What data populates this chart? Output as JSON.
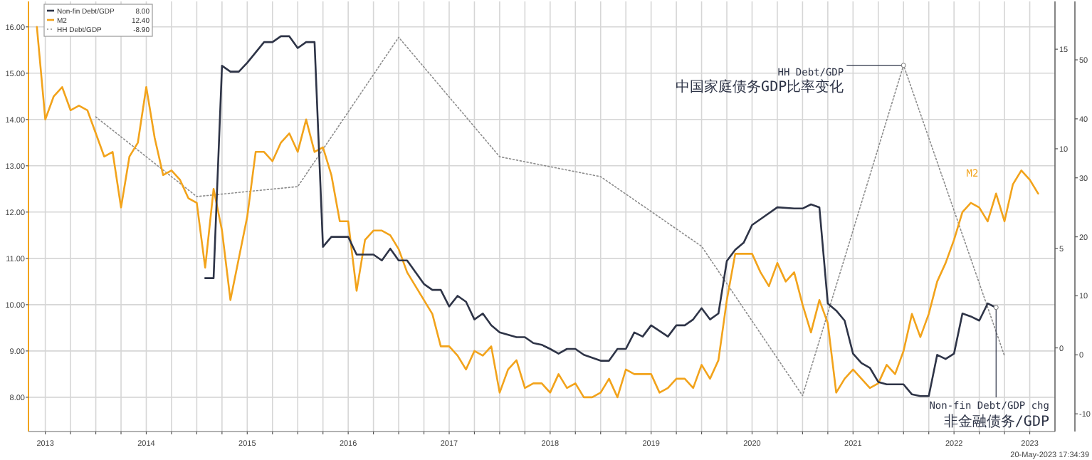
{
  "chart_data": {
    "type": "line",
    "xlim": [
      "2013-05",
      "2023-07"
    ],
    "xticks": [
      {
        "value": "2013-07",
        "label": "2013"
      },
      {
        "value": "2013-10",
        "label": null
      },
      {
        "value": "2014-01",
        "label": null
      },
      {
        "value": "2014-04",
        "label": null
      },
      {
        "value": "2014-07",
        "label": "2014"
      },
      {
        "value": "2014-10",
        "label": null
      },
      {
        "value": "2015-01",
        "label": null
      },
      {
        "value": "2015-04",
        "label": null
      },
      {
        "value": "2015-07",
        "label": "2015"
      },
      {
        "value": "2015-10",
        "label": null
      },
      {
        "value": "2016-01",
        "label": null
      },
      {
        "value": "2016-04",
        "label": null
      },
      {
        "value": "2016-07",
        "label": "2016"
      },
      {
        "value": "2016-10",
        "label": null
      },
      {
        "value": "2017-01",
        "label": null
      },
      {
        "value": "2017-04",
        "label": null
      },
      {
        "value": "2017-07",
        "label": "2017"
      },
      {
        "value": "2017-10",
        "label": null
      },
      {
        "value": "2018-01",
        "label": null
      },
      {
        "value": "2018-04",
        "label": null
      },
      {
        "value": "2018-07",
        "label": "2018"
      },
      {
        "value": "2018-10",
        "label": null
      },
      {
        "value": "2019-01",
        "label": null
      },
      {
        "value": "2019-04",
        "label": null
      },
      {
        "value": "2019-07",
        "label": "2019"
      },
      {
        "value": "2019-10",
        "label": null
      },
      {
        "value": "2020-01",
        "label": null
      },
      {
        "value": "2020-04",
        "label": null
      },
      {
        "value": "2020-07",
        "label": "2020"
      },
      {
        "value": "2020-10",
        "label": null
      },
      {
        "value": "2021-01",
        "label": null
      },
      {
        "value": "2021-04",
        "label": null
      },
      {
        "value": "2021-07",
        "label": "2021"
      },
      {
        "value": "2021-10",
        "label": null
      },
      {
        "value": "2022-01",
        "label": null
      },
      {
        "value": "2022-04",
        "label": null
      },
      {
        "value": "2022-07",
        "label": "2022"
      },
      {
        "value": "2022-10",
        "label": null
      },
      {
        "value": "2023-01",
        "label": null
      },
      {
        "value": "2023-04",
        "label": "2023"
      }
    ],
    "ylim": [
      7.26,
      16.55
    ],
    "yticks": [
      {
        "value": 8,
        "label": "8.00"
      },
      {
        "value": 9,
        "label": "9.00"
      },
      {
        "value": 10,
        "label": "10.00"
      },
      {
        "value": 11,
        "label": "11.00"
      },
      {
        "value": 12,
        "label": "12.00"
      },
      {
        "value": 13,
        "label": "13.00"
      },
      {
        "value": 14,
        "label": "14.00"
      },
      {
        "value": 15,
        "label": "15.00"
      },
      {
        "value": 16,
        "label": "16.00"
      }
    ],
    "y2lim": [
      -4.2,
      17.4
    ],
    "y2ticks": [
      0,
      5,
      10,
      15
    ],
    "y3lim": [
      -13,
      59.9
    ],
    "y3ticks": [
      -10,
      0,
      10,
      20,
      30,
      40,
      50
    ],
    "grid": true,
    "legend": "top left",
    "series": [
      {
        "name": "Non-fin Debt/GDP",
        "color": "#2e3447",
        "axis": "y3",
        "x": [
          "2015-02",
          "2015-03",
          "2015-04",
          "2015-05",
          "2015-06",
          "2015-07",
          "2015-09",
          "2015-10",
          "2015-11",
          "2015-12",
          "2016-01",
          "2016-02",
          "2016-03",
          "2016-04",
          "2016-05",
          "2016-07",
          "2016-08",
          "2016-10",
          "2016-11",
          "2016-12",
          "2017-01",
          "2017-02",
          "2017-04",
          "2017-05",
          "2017-06",
          "2017-07",
          "2017-08",
          "2017-09",
          "2017-10",
          "2017-11",
          "2017-12",
          "2018-01",
          "2018-03",
          "2018-04",
          "2018-05",
          "2018-06",
          "2018-07",
          "2018-08",
          "2018-09",
          "2018-10",
          "2018-11",
          "2019-01",
          "2019-02",
          "2019-03",
          "2019-04",
          "2019-05",
          "2019-06",
          "2019-07",
          "2019-09",
          "2019-10",
          "2019-11",
          "2019-12",
          "2020-01",
          "2020-02",
          "2020-03",
          "2020-04",
          "2020-05",
          "2020-06",
          "2020-07",
          "2020-08",
          "2020-10",
          "2020-12",
          "2021-01",
          "2021-02",
          "2021-03",
          "2021-04",
          "2021-05",
          "2021-06",
          "2021-07",
          "2021-08",
          "2021-09",
          "2021-10",
          "2021-11",
          "2022-01",
          "2022-02",
          "2022-03",
          "2022-04",
          "2022-05",
          "2022-06",
          "2022-07",
          "2022-08",
          "2022-09",
          "2022-10",
          "2022-11",
          "2022-12"
        ],
        "values": [
          13,
          13,
          49,
          48,
          48,
          49.5,
          53,
          53,
          54,
          54,
          52,
          53,
          53,
          18.3,
          20,
          20,
          17,
          17,
          16,
          18,
          16,
          16,
          12,
          11,
          11,
          8.2,
          10,
          9,
          6,
          7,
          5,
          3.8,
          3,
          3,
          2,
          1.7,
          1,
          0.2,
          1,
          1,
          0,
          -1,
          -1,
          1,
          1,
          3.8,
          3.1,
          5,
          3.1,
          5,
          5,
          6,
          7.9,
          6,
          7,
          15.9,
          17.8,
          19,
          22,
          23,
          25,
          24.8,
          24.8,
          25.5,
          25,
          8.7,
          7.5,
          5.8,
          0.2,
          -1.4,
          -2.2,
          -4.6,
          -5,
          -5,
          -6.7,
          -7,
          -7,
          0,
          -0.7,
          0.2,
          7,
          6.5,
          5.8,
          8.7,
          8
        ]
      },
      {
        "name": "M2",
        "color": "#f2a31b",
        "x": [
          "2013-06",
          "2013-07",
          "2013-08",
          "2013-09",
          "2013-10",
          "2013-11",
          "2013-12",
          "2014-01",
          "2014-02",
          "2014-03",
          "2014-04",
          "2014-05",
          "2014-06",
          "2014-07",
          "2014-08",
          "2014-09",
          "2014-10",
          "2014-11",
          "2014-12",
          "2015-01",
          "2015-02",
          "2015-03",
          "2015-04",
          "2015-05",
          "2015-06",
          "2015-07",
          "2015-08",
          "2015-09",
          "2015-10",
          "2015-11",
          "2015-12",
          "2016-01",
          "2016-02",
          "2016-03",
          "2016-04",
          "2016-05",
          "2016-06",
          "2016-07",
          "2016-08",
          "2016-09",
          "2016-10",
          "2016-11",
          "2016-12",
          "2017-01",
          "2017-02",
          "2017-03",
          "2017-04",
          "2017-05",
          "2017-06",
          "2017-07",
          "2017-08",
          "2017-09",
          "2017-10",
          "2017-11",
          "2017-12",
          "2018-01",
          "2018-02",
          "2018-03",
          "2018-04",
          "2018-05",
          "2018-06",
          "2018-07",
          "2018-08",
          "2018-09",
          "2018-10",
          "2018-11",
          "2018-12",
          "2019-01",
          "2019-02",
          "2019-03",
          "2019-04",
          "2019-05",
          "2019-06",
          "2019-07",
          "2019-08",
          "2019-09",
          "2019-10",
          "2019-11",
          "2019-12",
          "2020-01",
          "2020-02",
          "2020-03",
          "2020-04",
          "2020-05",
          "2020-06",
          "2020-07",
          "2020-08",
          "2020-09",
          "2020-10",
          "2020-11",
          "2020-12",
          "2021-01",
          "2021-02",
          "2021-03",
          "2021-04",
          "2021-05",
          "2021-06",
          "2021-07",
          "2021-08",
          "2021-09",
          "2021-10",
          "2021-11",
          "2021-12",
          "2022-01",
          "2022-02",
          "2022-03",
          "2022-04",
          "2022-05",
          "2022-06",
          "2022-07",
          "2022-08",
          "2022-09",
          "2022-10",
          "2022-11",
          "2022-12",
          "2023-01",
          "2023-02",
          "2023-03",
          "2023-04",
          "2023-05"
        ],
        "values": [
          16.0,
          14.0,
          14.5,
          14.7,
          14.2,
          14.3,
          14.2,
          13.7,
          13.2,
          13.3,
          12.1,
          13.2,
          13.5,
          14.7,
          13.6,
          12.8,
          12.9,
          12.7,
          12.3,
          12.2,
          10.8,
          12.5,
          11.6,
          10.1,
          11.0,
          11.9,
          13.3,
          13.3,
          13.1,
          13.5,
          13.7,
          13.3,
          14.0,
          13.3,
          13.4,
          12.8,
          11.8,
          11.8,
          10.3,
          11.4,
          11.6,
          11.6,
          11.5,
          11.2,
          10.7,
          10.4,
          10.1,
          9.8,
          9.1,
          9.1,
          8.9,
          8.6,
          9.0,
          8.9,
          9.1,
          8.1,
          8.6,
          8.8,
          8.2,
          8.3,
          8.3,
          8.1,
          8.5,
          8.2,
          8.3,
          8.0,
          8.0,
          8.1,
          8.4,
          8.0,
          8.6,
          8.5,
          8.5,
          8.5,
          8.1,
          8.2,
          8.4,
          8.4,
          8.2,
          8.7,
          8.4,
          8.8,
          10.1,
          11.1,
          11.1,
          11.1,
          10.7,
          10.4,
          10.9,
          10.5,
          10.7,
          10.0,
          9.4,
          10.1,
          9.6,
          8.1,
          8.4,
          8.6,
          8.4,
          8.2,
          8.3,
          8.7,
          8.5,
          9.0,
          9.8,
          9.3,
          9.8,
          10.5,
          10.9,
          11.4,
          12.0,
          12.2,
          12.1,
          11.8,
          12.4,
          11.8,
          12.6,
          12.9,
          12.7,
          12.4
        ]
      },
      {
        "name": "HH Debt/GDP",
        "color": "#8c8c8c",
        "axis": "y2",
        "line_style": "dotted",
        "x": [
          "2014-01",
          "2015-01",
          "2016-01",
          "2017-01",
          "2018-01",
          "2019-01",
          "2020-01",
          "2021-01",
          "2022-01",
          "2023-01"
        ],
        "values": [
          11.6,
          7.6,
          8.1,
          15.6,
          9.6,
          8.6,
          5.1,
          -2.4,
          14.2,
          -0.4
        ]
      }
    ],
    "annotations": [
      {
        "text": "HH Debt/GDP",
        "x": "2022-01",
        "y": 15.17
      },
      {
        "text": "中国家庭债务GDP比率变化",
        "x": "2022-01",
        "y": 15.17
      },
      "M2",
      {
        "text": "Non-fin Debt/GDP chg",
        "x": "2022-12",
        "y": 9.94
      },
      {
        "text": "非金融债务/GDP",
        "x": "2022-12",
        "y": 9.94
      },
      "8.00",
      "12.40",
      "-8.90",
      "20-May-2023 17:34:39"
    ]
  }
}
